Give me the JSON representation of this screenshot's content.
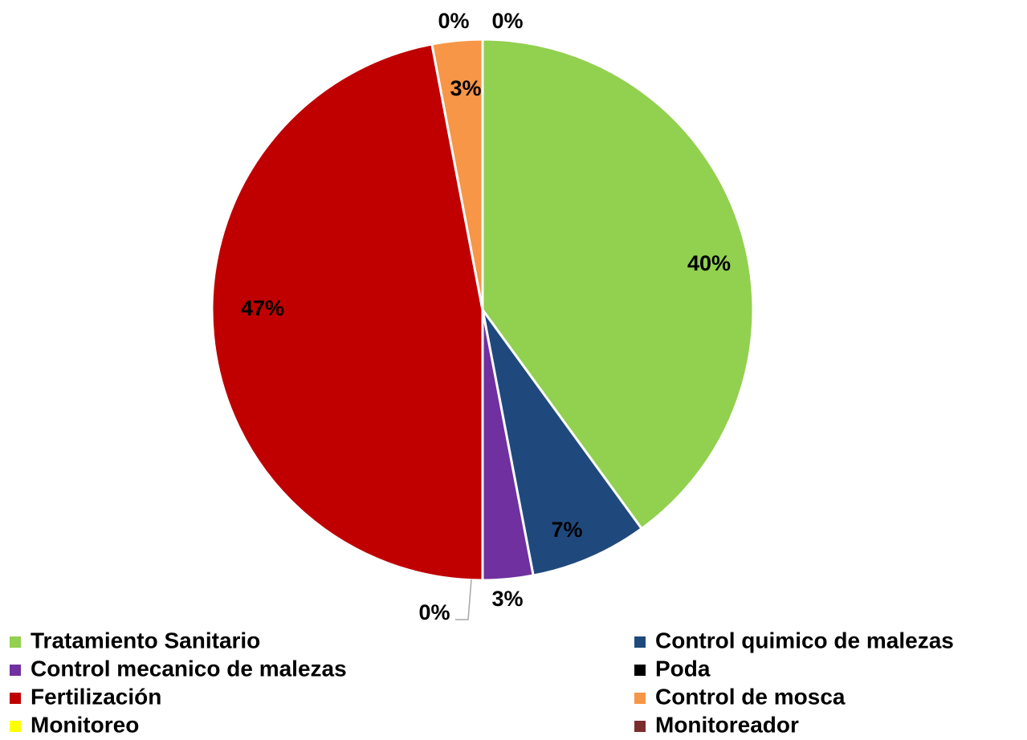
{
  "chart_data": {
    "type": "pie",
    "categories": [
      "Tratamiento Sanitario",
      "Control quimico de malezas",
      "Control mecanico de malezas",
      "Poda",
      "Fertilización",
      "Control de mosca",
      "Monitoreo",
      "Monitoreador"
    ],
    "values": [
      40,
      7,
      3,
      0,
      47,
      3,
      0,
      0
    ],
    "value_labels": [
      "40%",
      "7%",
      "3%",
      "0%",
      "47%",
      "3%",
      "0%",
      "0%"
    ],
    "colors": [
      "#92d050",
      "#1f497d",
      "#7030a0",
      "#000000",
      "#c00000",
      "#f79646",
      "#ffff00",
      "#7b2c2c"
    ]
  }
}
